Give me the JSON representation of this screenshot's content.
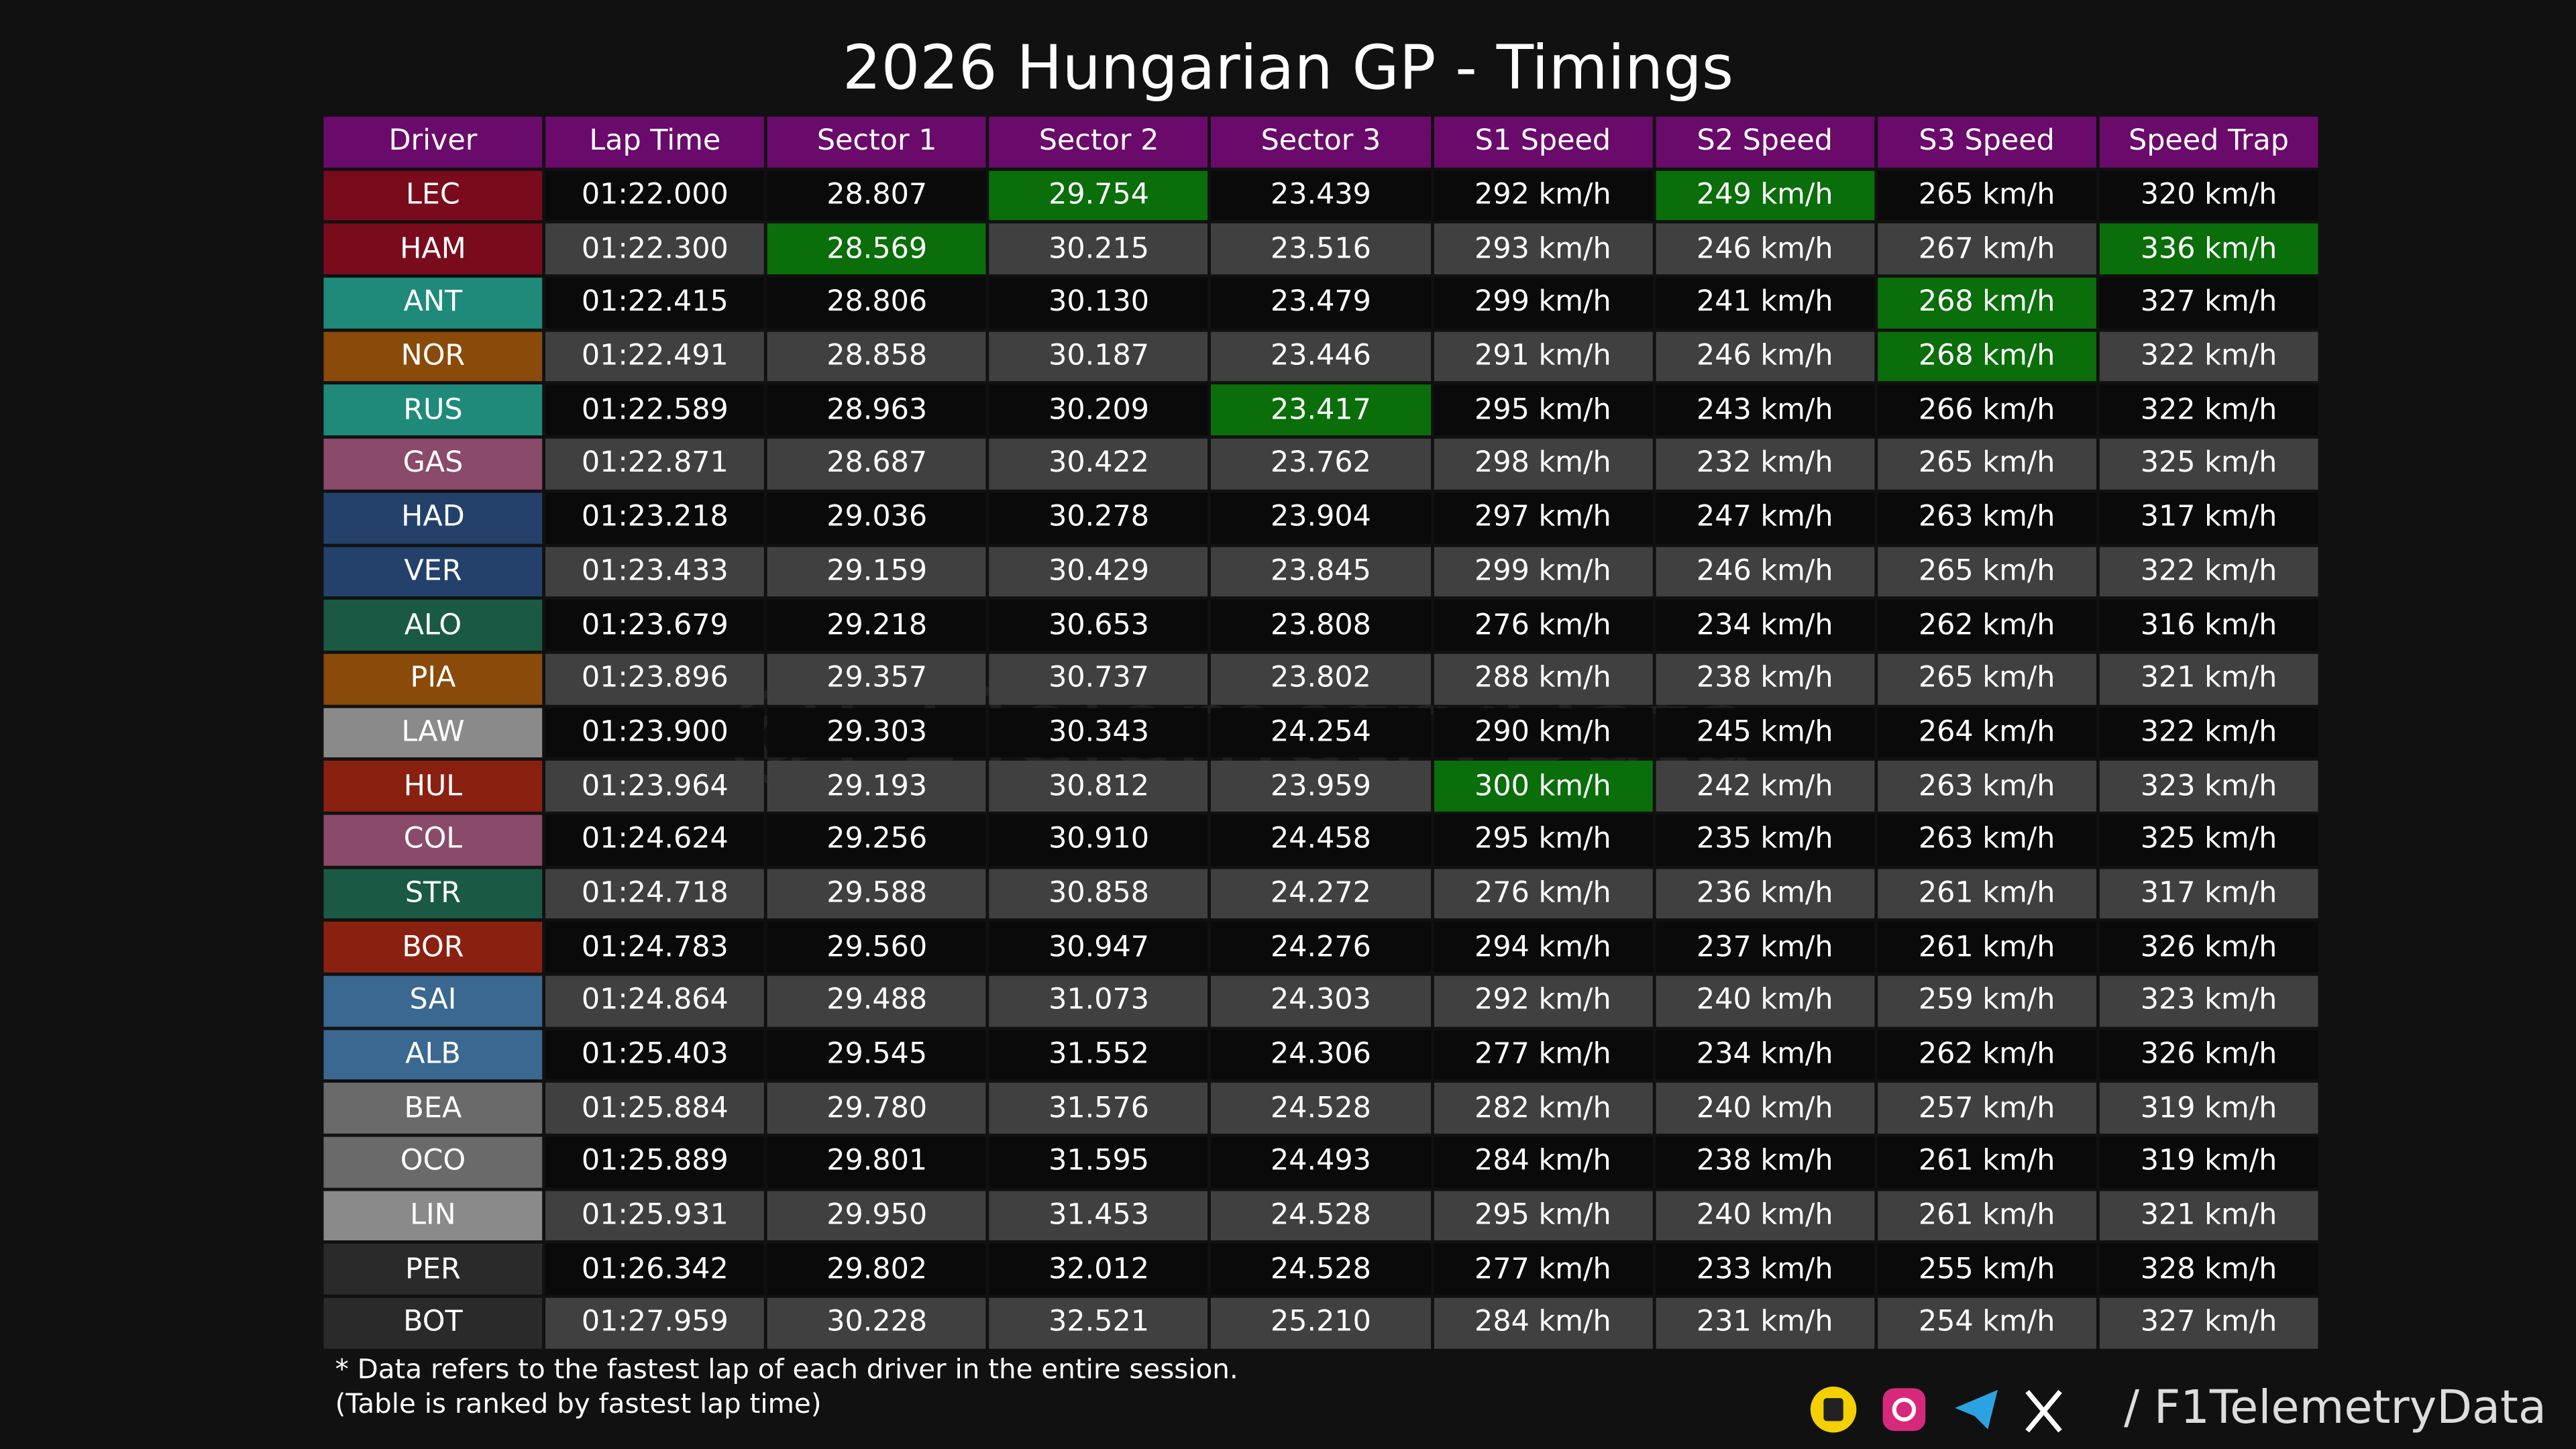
{
  "header": {
    "title": "2026 Hungarian GP - Timings"
  },
  "table": {
    "headers": [
      "Driver",
      "Lap Time",
      "Sector 1",
      "Sector 2",
      "Sector 3",
      "S1 Speed",
      "S2 Speed",
      "S3 Speed",
      "Speed Trap"
    ],
    "rows": [
      [
        "LEC",
        "01:22.000",
        "28.807",
        "29.754",
        "23.439",
        "292 km/h",
        "249 km/h",
        "265 km/h",
        "320 km/h"
      ],
      [
        "HAM",
        "01:22.300",
        "28.569",
        "30.215",
        "23.516",
        "293 km/h",
        "246 km/h",
        "267 km/h",
        "336 km/h"
      ],
      [
        "ANT",
        "01:22.415",
        "28.806",
        "30.130",
        "23.479",
        "299 km/h",
        "241 km/h",
        "268 km/h",
        "327 km/h"
      ],
      [
        "NOR",
        "01:22.491",
        "28.858",
        "30.187",
        "23.446",
        "291 km/h",
        "246 km/h",
        "268 km/h",
        "322 km/h"
      ],
      [
        "RUS",
        "01:22.589",
        "28.963",
        "30.209",
        "23.417",
        "295 km/h",
        "243 km/h",
        "266 km/h",
        "322 km/h"
      ],
      [
        "GAS",
        "01:22.871",
        "28.687",
        "30.422",
        "23.762",
        "298 km/h",
        "232 km/h",
        "265 km/h",
        "325 km/h"
      ],
      [
        "HAD",
        "01:23.218",
        "29.036",
        "30.278",
        "23.904",
        "297 km/h",
        "247 km/h",
        "263 km/h",
        "317 km/h"
      ],
      [
        "VER",
        "01:23.433",
        "29.159",
        "30.429",
        "23.845",
        "299 km/h",
        "246 km/h",
        "265 km/h",
        "322 km/h"
      ],
      [
        "ALO",
        "01:23.679",
        "29.218",
        "30.653",
        "23.808",
        "276 km/h",
        "234 km/h",
        "262 km/h",
        "316 km/h"
      ],
      [
        "PIA",
        "01:23.896",
        "29.357",
        "30.737",
        "23.802",
        "288 km/h",
        "238 km/h",
        "265 km/h",
        "321 km/h"
      ],
      [
        "LAW",
        "01:23.900",
        "29.303",
        "30.343",
        "24.254",
        "290 km/h",
        "245 km/h",
        "264 km/h",
        "322 km/h"
      ],
      [
        "HUL",
        "01:23.964",
        "29.193",
        "30.812",
        "23.959",
        "300 km/h",
        "242 km/h",
        "263 km/h",
        "323 km/h"
      ],
      [
        "COL",
        "01:24.624",
        "29.256",
        "30.910",
        "24.458",
        "295 km/h",
        "235 km/h",
        "263 km/h",
        "325 km/h"
      ],
      [
        "STR",
        "01:24.718",
        "29.588",
        "30.858",
        "24.272",
        "276 km/h",
        "236 km/h",
        "261 km/h",
        "317 km/h"
      ],
      [
        "BOR",
        "01:24.783",
        "29.560",
        "30.947",
        "24.276",
        "294 km/h",
        "237 km/h",
        "261 km/h",
        "326 km/h"
      ],
      [
        "SAI",
        "01:24.864",
        "29.488",
        "31.073",
        "24.303",
        "292 km/h",
        "240 km/h",
        "259 km/h",
        "323 km/h"
      ],
      [
        "ALB",
        "01:25.403",
        "29.545",
        "31.552",
        "24.306",
        "277 km/h",
        "234 km/h",
        "262 km/h",
        "326 km/h"
      ],
      [
        "BEA",
        "01:25.884",
        "29.780",
        "31.576",
        "24.528",
        "282 km/h",
        "240 km/h",
        "257 km/h",
        "319 km/h"
      ],
      [
        "OCO",
        "01:25.889",
        "29.801",
        "31.595",
        "24.493",
        "284 km/h",
        "238 km/h",
        "261 km/h",
        "319 km/h"
      ],
      [
        "LIN",
        "01:25.931",
        "29.950",
        "31.453",
        "24.528",
        "295 km/h",
        "240 km/h",
        "261 km/h",
        "321 km/h"
      ],
      [
        "PER",
        "01:26.342",
        "29.802",
        "32.012",
        "24.528",
        "277 km/h",
        "233 km/h",
        "255 km/h",
        "328 km/h"
      ],
      [
        "BOT",
        "01:27.959",
        "30.228",
        "32.521",
        "25.210",
        "284 km/h",
        "231 km/h",
        "254 km/h",
        "327 km/h"
      ]
    ],
    "driver_colors": [
      "#7a0b1c",
      "#7a0b1c",
      "#1f8a7a",
      "#8a4a0a",
      "#1f8a7a",
      "#8a4a6a",
      "#23416b",
      "#23416b",
      "#1a5a44",
      "#8a4a0a",
      "#8a8a8a",
      "#8a2010",
      "#8a4a6a",
      "#1a5a44",
      "#8a2010",
      "#3a6890",
      "#3a6890",
      "#6a6a6a",
      "#6a6a6a",
      "#8a8a8a",
      "#2a2a2a",
      "#2a2a2a"
    ],
    "highlight_color": "#0a6e0a",
    "header_color": "#6a0a6a",
    "row_colors": [
      "#0a0a0a",
      "#404040"
    ],
    "highlights": [
      [
        0,
        3
      ],
      [
        0,
        6
      ],
      [
        1,
        2
      ],
      [
        1,
        8
      ],
      [
        2,
        7
      ],
      [
        3,
        7
      ],
      [
        4,
        4
      ],
      [
        11,
        5
      ]
    ]
  },
  "watermark": "@F1TelemetryData",
  "footer": {
    "notes": [
      "* Data refers to the fastest lap of each driver in the entire session.",
      "(Table is ranked by fastest lap time)"
    ],
    "handle": "/ F1TelemetryData"
  }
}
